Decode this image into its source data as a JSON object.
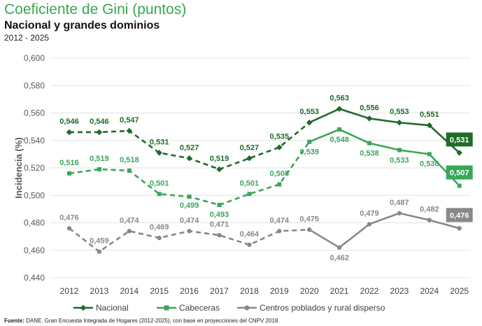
{
  "header": {
    "title": "Coeficiente de Gini (puntos)",
    "subtitle": "Nacional y grandes dominios",
    "period": "2012 - 2025"
  },
  "footer": {
    "source_label": "Fuente:",
    "source_text": "DANE. Gran Encuesta Integrada de Hogares (2012-2025), con base en proyecciones del CNPV 2018."
  },
  "chart_data": {
    "type": "line",
    "ylabel": "Incidencia (%)",
    "ylim": [
      0.44,
      0.6
    ],
    "y_ticks": [
      "0,440",
      "0,460",
      "0,480",
      "0,500",
      "0,520",
      "0,540",
      "0,560",
      "0,580",
      "0,600"
    ],
    "x": [
      "2012",
      "2013",
      "2014",
      "2015",
      "2016",
      "2017",
      "2018",
      "2019",
      "2020",
      "2021",
      "2022",
      "2023",
      "2024",
      "2025"
    ],
    "grid": "horizontal",
    "legend_position": "bottom",
    "note": "Dashed segments 2012-2020, solid segments 2020-2025; 2025 values shown in boxed labels",
    "series": [
      {
        "name": "Nacional",
        "color": "#1e6b2a",
        "values": [
          0.546,
          0.546,
          0.547,
          0.531,
          0.527,
          0.519,
          0.527,
          0.535,
          0.553,
          0.563,
          0.556,
          0.553,
          0.551,
          0.531
        ],
        "labels": [
          "0,546",
          "0,546",
          "0,547",
          "0,531",
          "0,527",
          "0,519",
          "0,527",
          "0,535",
          "0,553",
          "0,563",
          "0,556",
          "0,553",
          "0,551",
          "0,531"
        ]
      },
      {
        "name": "Cabeceras",
        "color": "#3aa65a",
        "values": [
          0.516,
          0.519,
          0.518,
          0.501,
          0.499,
          0.493,
          0.501,
          0.508,
          0.539,
          0.548,
          0.538,
          0.533,
          0.53,
          0.507
        ],
        "labels": [
          "0,516",
          "0,519",
          "0,518",
          "0,501",
          "0,499",
          "0,493",
          "0,501",
          "0,508",
          "0,539",
          "0,548",
          "0,538",
          "0,533",
          "0,530",
          "0,507"
        ]
      },
      {
        "name": "Centros poblados y rural disperso",
        "color": "#888888",
        "values": [
          0.476,
          0.459,
          0.474,
          0.469,
          0.474,
          0.471,
          0.464,
          0.474,
          0.475,
          0.462,
          0.479,
          0.487,
          0.482,
          0.476
        ],
        "labels": [
          "0,476",
          "0,459",
          "0,474",
          "0,469",
          "0,474",
          "0,471",
          "0,464",
          "0,474",
          "0,475",
          "0,462",
          "0,479",
          "0,487",
          "0,482",
          "0,476"
        ]
      }
    ]
  }
}
